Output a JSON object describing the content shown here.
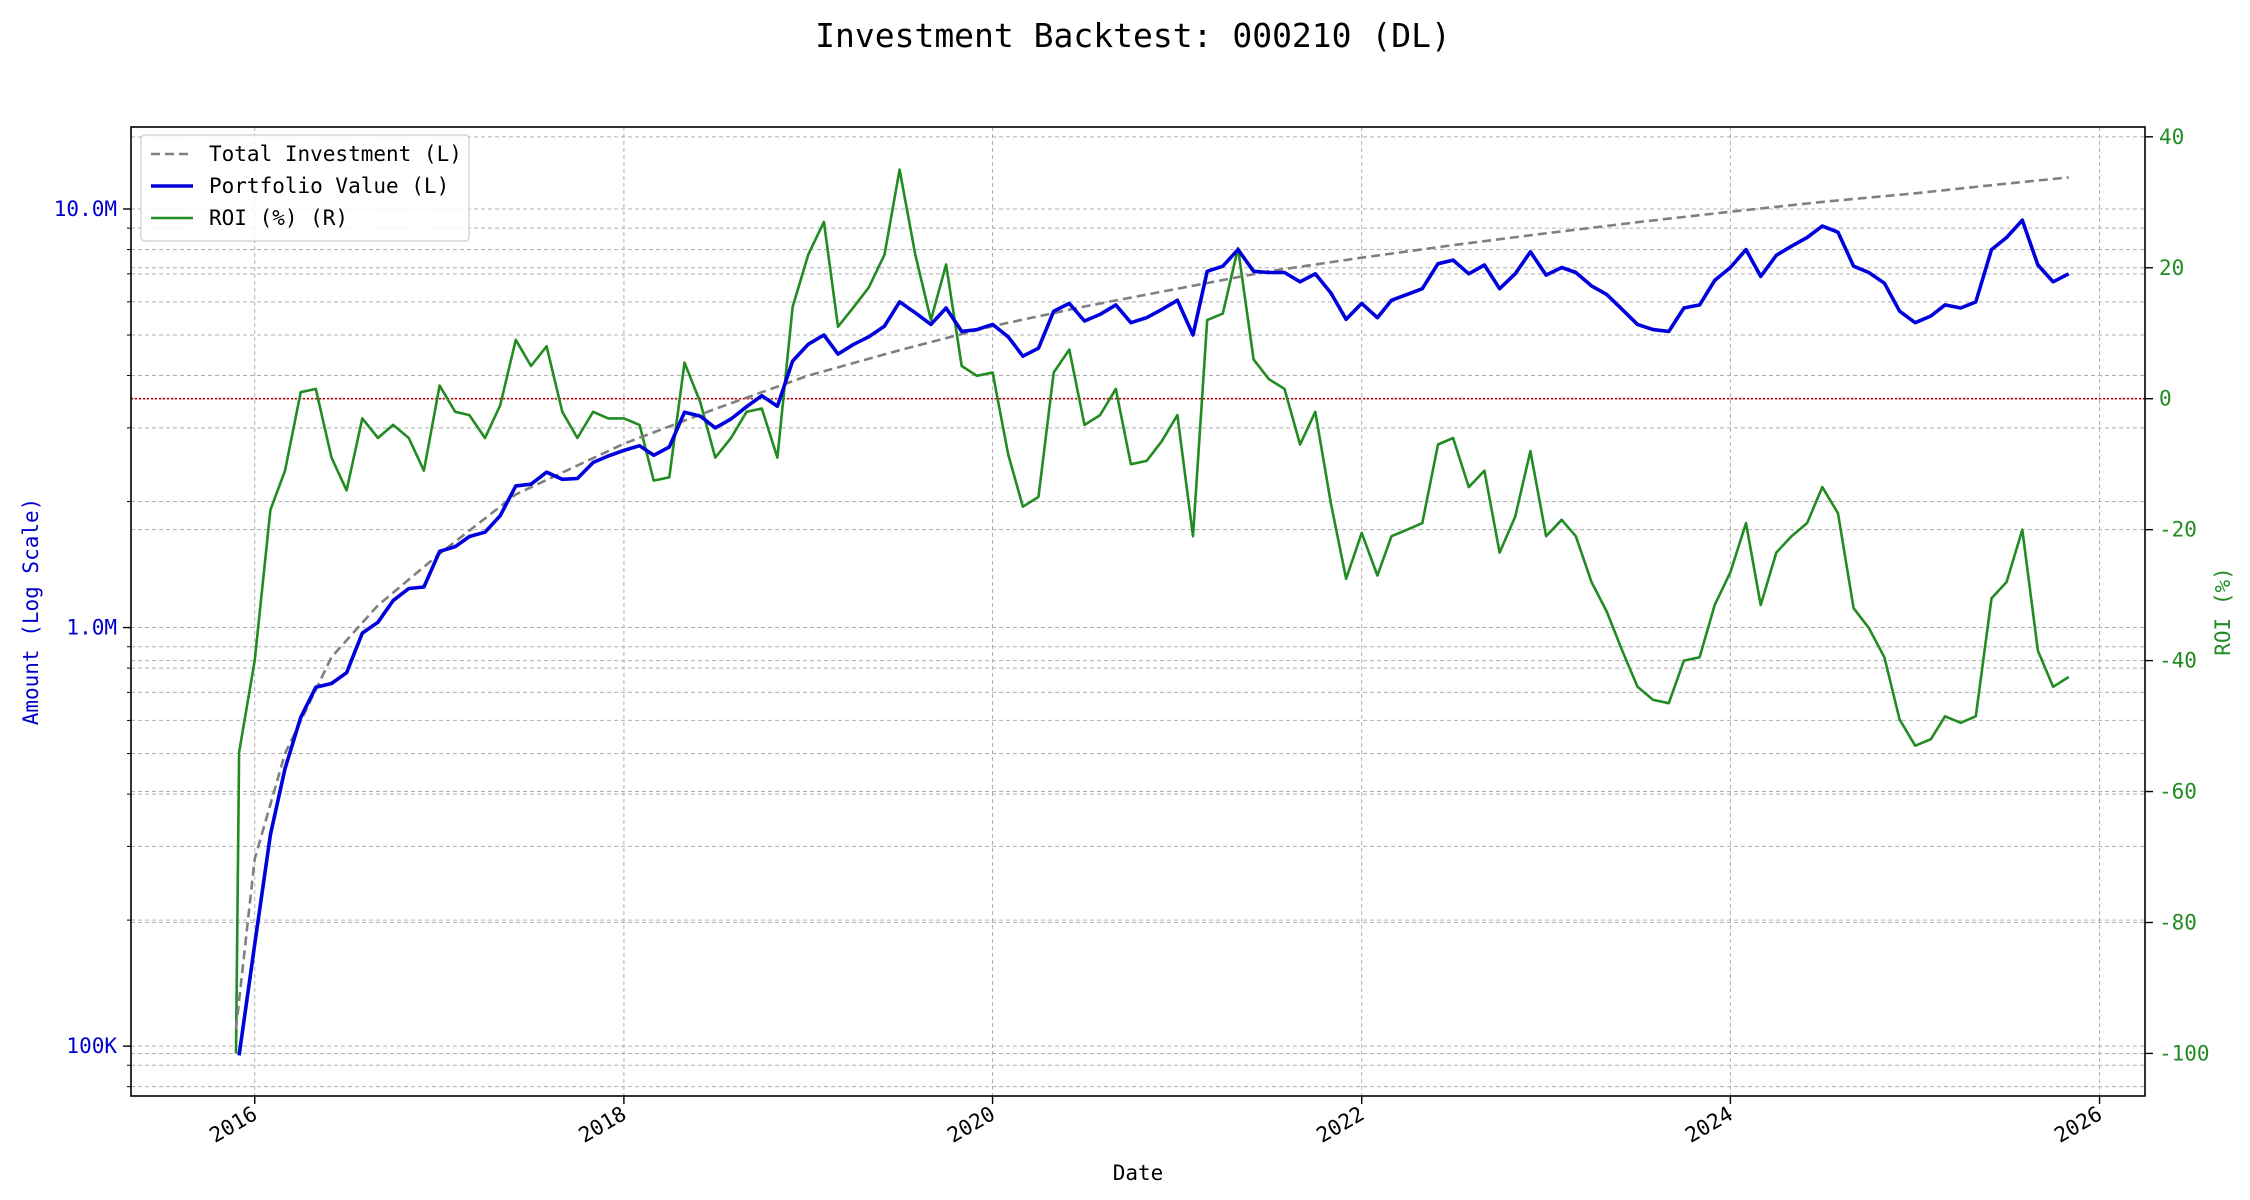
{
  "chart_data": {
    "type": "line",
    "title": "Investment Backtest: 000210 (DL)",
    "xlabel": "Date",
    "ylabel_left": "Amount (Log Scale)",
    "ylabel_right": "ROI (%)",
    "x_ticks": [
      "2016",
      "2018",
      "2020",
      "2022",
      "2024",
      "2026"
    ],
    "y_left_scale": "log",
    "y_left_ticks": [
      "100K",
      "1.0M",
      "10.0M"
    ],
    "y_left_range": [
      76000,
      15700000
    ],
    "y_right_ticks": [
      "-100",
      "-80",
      "-60",
      "-40",
      "-20",
      "0",
      "20",
      "40"
    ],
    "y_right_range": [
      -106.5,
      41.5
    ],
    "x_range": [
      "2015-05-01",
      "2026-04-01"
    ],
    "grid": true,
    "legend_position": "top-left",
    "reference_line": {
      "axis": "right",
      "value": 0,
      "color": "#cc0000",
      "style": "dotted"
    },
    "colors": {
      "total_investment": "#808080",
      "portfolio": "#0000dd",
      "roi": "#228b22",
      "left_axis": "#0000cc",
      "right_axis": "#228b22"
    },
    "legend": [
      {
        "label": "Total Investment (L)",
        "series": "total_investment"
      },
      {
        "label": "Portfolio Value (L)",
        "series": "portfolio"
      },
      {
        "label": "ROI (%) (R)",
        "series": "roi"
      }
    ],
    "series": {
      "total_investment": {
        "name": "Total Investment (L)",
        "axis": "left",
        "x": [
          "2015-11-25",
          "2016-01-01",
          "2016-03-01",
          "2016-06-01",
          "2016-09-01",
          "2017-01-01",
          "2017-06-01",
          "2018-01-01",
          "2018-07-01",
          "2019-01-01",
          "2019-07-01",
          "2020-01-01",
          "2020-07-01",
          "2021-01-01",
          "2021-07-01",
          "2022-01-01",
          "2022-07-01",
          "2023-01-01",
          "2023-07-01",
          "2024-01-01",
          "2024-07-01",
          "2025-01-01",
          "2025-07-01",
          "2025-11-01"
        ],
        "values": [
          110000,
          280000,
          500000,
          850000,
          1130000,
          1500000,
          2080000,
          2750000,
          3330000,
          4000000,
          4600000,
          5250000,
          5850000,
          6450000,
          7100000,
          7650000,
          8200000,
          8750000,
          9300000,
          9850000,
          10400000,
          10900000,
          11500000,
          11900000
        ]
      },
      "portfolio": {
        "name": "Portfolio Value (L)",
        "axis": "left",
        "x": [
          "2015-12-01",
          "2016-01-01",
          "2016-02-01",
          "2016-03-01",
          "2016-04-01",
          "2016-05-01",
          "2016-06-01",
          "2016-07-01",
          "2016-08-01",
          "2016-09-01",
          "2016-10-01",
          "2016-11-01",
          "2016-12-01",
          "2017-01-01",
          "2017-02-01",
          "2017-03-01",
          "2017-04-01",
          "2017-05-01",
          "2017-06-01",
          "2017-07-01",
          "2017-08-01",
          "2017-09-01",
          "2017-10-01",
          "2017-11-01",
          "2017-12-01",
          "2018-01-01",
          "2018-02-01",
          "2018-03-01",
          "2018-04-01",
          "2018-05-01",
          "2018-06-01",
          "2018-07-01",
          "2018-08-01",
          "2018-09-01",
          "2018-10-01",
          "2018-11-01",
          "2018-12-01",
          "2019-01-01",
          "2019-02-01",
          "2019-03-01",
          "2019-04-01",
          "2019-05-01",
          "2019-06-01",
          "2019-07-01",
          "2019-08-01",
          "2019-09-01",
          "2019-10-01",
          "2019-11-01",
          "2019-12-01",
          "2020-01-01",
          "2020-02-01",
          "2020-03-01",
          "2020-04-01",
          "2020-05-01",
          "2020-06-01",
          "2020-07-01",
          "2020-08-01",
          "2020-09-01",
          "2020-10-01",
          "2020-11-01",
          "2020-12-01",
          "2021-01-01",
          "2021-02-01",
          "2021-03-01",
          "2021-04-01",
          "2021-05-01",
          "2021-06-01",
          "2021-07-01",
          "2021-08-01",
          "2021-09-01",
          "2021-10-01",
          "2021-11-01",
          "2021-12-01",
          "2022-01-01",
          "2022-02-01",
          "2022-03-01",
          "2022-04-01",
          "2022-05-01",
          "2022-06-01",
          "2022-07-01",
          "2022-08-01",
          "2022-09-01",
          "2022-10-01",
          "2022-11-01",
          "2022-12-01",
          "2023-01-01",
          "2023-02-01",
          "2023-03-01",
          "2023-04-01",
          "2023-05-01",
          "2023-06-01",
          "2023-07-01",
          "2023-08-01",
          "2023-09-01",
          "2023-10-01",
          "2023-11-01",
          "2023-12-01",
          "2024-01-01",
          "2024-02-01",
          "2024-03-01",
          "2024-04-01",
          "2024-05-01",
          "2024-06-01",
          "2024-07-01",
          "2024-08-01",
          "2024-09-01",
          "2024-10-01",
          "2024-11-01",
          "2024-12-01",
          "2025-01-01",
          "2025-02-01",
          "2025-03-01",
          "2025-04-01",
          "2025-05-01",
          "2025-06-01",
          "2025-07-01",
          "2025-08-01",
          "2025-09-01",
          "2025-10-01",
          "2025-11-01"
        ],
        "values": [
          95000,
          175000,
          320000,
          460000,
          610000,
          720000,
          735000,
          780000,
          970000,
          1030000,
          1160000,
          1240000,
          1250000,
          1520000,
          1560000,
          1650000,
          1690000,
          1850000,
          2180000,
          2200000,
          2350000,
          2260000,
          2270000,
          2480000,
          2570000,
          2650000,
          2720000,
          2580000,
          2700000,
          3270000,
          3200000,
          3000000,
          3150000,
          3370000,
          3580000,
          3380000,
          4330000,
          4750000,
          5000000,
          4500000,
          4750000,
          4950000,
          5250000,
          6000000,
          5650000,
          5300000,
          5800000,
          5100000,
          5150000,
          5300000,
          4950000,
          4450000,
          4650000,
          5700000,
          5950000,
          5400000,
          5600000,
          5900000,
          5350000,
          5500000,
          5750000,
          6050000,
          5000000,
          7100000,
          7300000,
          8000000,
          7100000,
          7050000,
          7050000,
          6700000,
          7000000,
          6300000,
          5450000,
          5950000,
          5500000,
          6050000,
          6250000,
          6450000,
          7400000,
          7550000,
          7000000,
          7350000,
          6450000,
          7000000,
          7900000,
          6950000,
          7250000,
          7050000,
          6550000,
          6250000,
          5750000,
          5300000,
          5150000,
          5100000,
          5800000,
          5900000,
          6750000,
          7250000,
          8000000,
          6900000,
          7750000,
          8150000,
          8550000,
          9100000,
          8800000,
          7300000,
          7050000,
          6650000,
          5700000,
          5350000,
          5550000,
          5900000,
          5800000,
          6000000,
          8000000,
          8550000,
          9400000,
          7350000,
          6700000,
          7000000
        ]
      },
      "roi": {
        "name": "ROI (%) (R)",
        "axis": "right",
        "x": [
          "2015-11-25",
          "2015-12-01",
          "2016-01-01",
          "2016-02-01",
          "2016-03-01",
          "2016-04-01",
          "2016-05-01",
          "2016-06-01",
          "2016-07-01",
          "2016-08-01",
          "2016-09-01",
          "2016-10-01",
          "2016-11-01",
          "2016-12-01",
          "2017-01-01",
          "2017-02-01",
          "2017-03-01",
          "2017-04-01",
          "2017-05-01",
          "2017-06-01",
          "2017-07-01",
          "2017-08-01",
          "2017-09-01",
          "2017-10-01",
          "2017-11-01",
          "2017-12-01",
          "2018-01-01",
          "2018-02-01",
          "2018-03-01",
          "2018-04-01",
          "2018-05-01",
          "2018-06-01",
          "2018-07-01",
          "2018-08-01",
          "2018-09-01",
          "2018-10-01",
          "2018-11-01",
          "2018-12-01",
          "2019-01-01",
          "2019-02-01",
          "2019-03-01",
          "2019-04-01",
          "2019-05-01",
          "2019-06-01",
          "2019-07-01",
          "2019-08-01",
          "2019-09-01",
          "2019-10-01",
          "2019-11-01",
          "2019-12-01",
          "2020-01-01",
          "2020-02-01",
          "2020-03-01",
          "2020-04-01",
          "2020-05-01",
          "2020-06-01",
          "2020-07-01",
          "2020-08-01",
          "2020-09-01",
          "2020-10-01",
          "2020-11-01",
          "2020-12-01",
          "2021-01-01",
          "2021-02-01",
          "2021-03-01",
          "2021-04-01",
          "2021-05-01",
          "2021-06-01",
          "2021-07-01",
          "2021-08-01",
          "2021-09-01",
          "2021-10-01",
          "2021-11-01",
          "2021-12-01",
          "2022-01-01",
          "2022-02-01",
          "2022-03-01",
          "2022-04-01",
          "2022-05-01",
          "2022-06-01",
          "2022-07-01",
          "2022-08-01",
          "2022-09-01",
          "2022-10-01",
          "2022-11-01",
          "2022-12-01",
          "2023-01-01",
          "2023-02-01",
          "2023-03-01",
          "2023-04-01",
          "2023-05-01",
          "2023-06-01",
          "2023-07-01",
          "2023-08-01",
          "2023-09-01",
          "2023-10-01",
          "2023-11-01",
          "2023-12-01",
          "2024-01-01",
          "2024-02-01",
          "2024-03-01",
          "2024-04-01",
          "2024-05-01",
          "2024-06-01",
          "2024-07-01",
          "2024-08-01",
          "2024-09-01",
          "2024-10-01",
          "2024-11-01",
          "2024-12-01",
          "2025-01-01",
          "2025-02-01",
          "2025-03-01",
          "2025-04-01",
          "2025-05-01",
          "2025-06-01",
          "2025-07-01",
          "2025-08-01",
          "2025-09-01",
          "2025-10-01",
          "2025-11-01"
        ],
        "values": [
          -100,
          -54,
          -40,
          -17,
          -11,
          1,
          1.5,
          -9,
          -14,
          -3,
          -6,
          -4,
          -6,
          -11,
          2,
          -2,
          -2.5,
          -6,
          -1,
          9,
          5,
          8,
          -2,
          -6,
          -2,
          -3,
          -3,
          -4,
          -12.5,
          -12,
          5.5,
          -0.5,
          -9,
          -6,
          -2,
          -1.5,
          -9,
          14,
          22,
          27,
          11,
          14,
          17,
          22,
          35,
          22,
          12,
          20.5,
          5,
          3.5,
          4,
          -8.5,
          -16.5,
          -15,
          4,
          7.5,
          -4,
          -2.5,
          1.5,
          -10,
          -9.5,
          -6.5,
          -2.5,
          -21,
          12,
          13,
          23,
          6,
          3,
          1.5,
          -7,
          -2,
          -16,
          -27.5,
          -20.5,
          -27,
          -21,
          -20,
          -19,
          -7,
          -6,
          -13.5,
          -11,
          -23.5,
          -18,
          -8,
          -21,
          -18.5,
          -21,
          -28,
          -32.5,
          -38.5,
          -44,
          -46,
          -46.5,
          -40,
          -39.5,
          -31.5,
          -26.5,
          -19,
          -31.5,
          -23.5,
          -21,
          -19,
          -13.5,
          -17.5,
          -32,
          -35,
          -39.5,
          -49,
          -53,
          -52,
          -48.5,
          -49.5,
          -48.5,
          -30.5,
          -28,
          -20,
          -38.5,
          -44,
          -42.5
        ]
      }
    }
  }
}
